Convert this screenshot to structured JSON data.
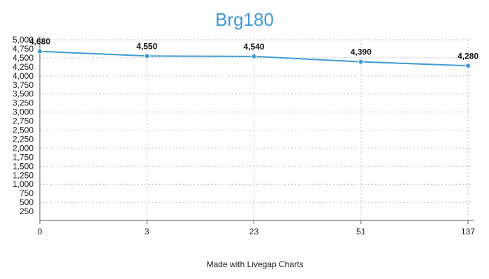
{
  "chart_data": {
    "type": "line",
    "title": "Brg180",
    "categories": [
      "0",
      "3",
      "23",
      "51",
      "137"
    ],
    "series": [
      {
        "values": [
          4680,
          4550,
          4540,
          4390,
          4280
        ],
        "color": "#3d9ad6"
      }
    ],
    "data_labels": [
      "4,680",
      "4,550",
      "4,540",
      "4,390",
      "4,280"
    ],
    "y_ticks": [
      250,
      500,
      750,
      1000,
      1250,
      1500,
      1750,
      2000,
      2250,
      2500,
      2750,
      3000,
      3250,
      3500,
      3750,
      4000,
      4250,
      4500,
      4750,
      5000
    ],
    "y_tick_labels": [
      "250",
      "500",
      "750",
      "1,000",
      "1,250",
      "1,500",
      "1,750",
      "2,000",
      "2,250",
      "2,500",
      "2,750",
      "3,000",
      "3,250",
      "3,500",
      "3,750",
      "4,000",
      "4,250",
      "4,500",
      "4,750",
      "5,000"
    ],
    "ylim": [
      0,
      5000
    ],
    "xlabel": "",
    "ylabel": "",
    "grid": true,
    "legend": "none"
  },
  "footer": {
    "credit": "Made with Livegap Charts"
  },
  "colors": {
    "line": "#3d9ad6",
    "title": "#3d9ad6",
    "grid": "#bbbbbb",
    "axis": "#555555"
  }
}
